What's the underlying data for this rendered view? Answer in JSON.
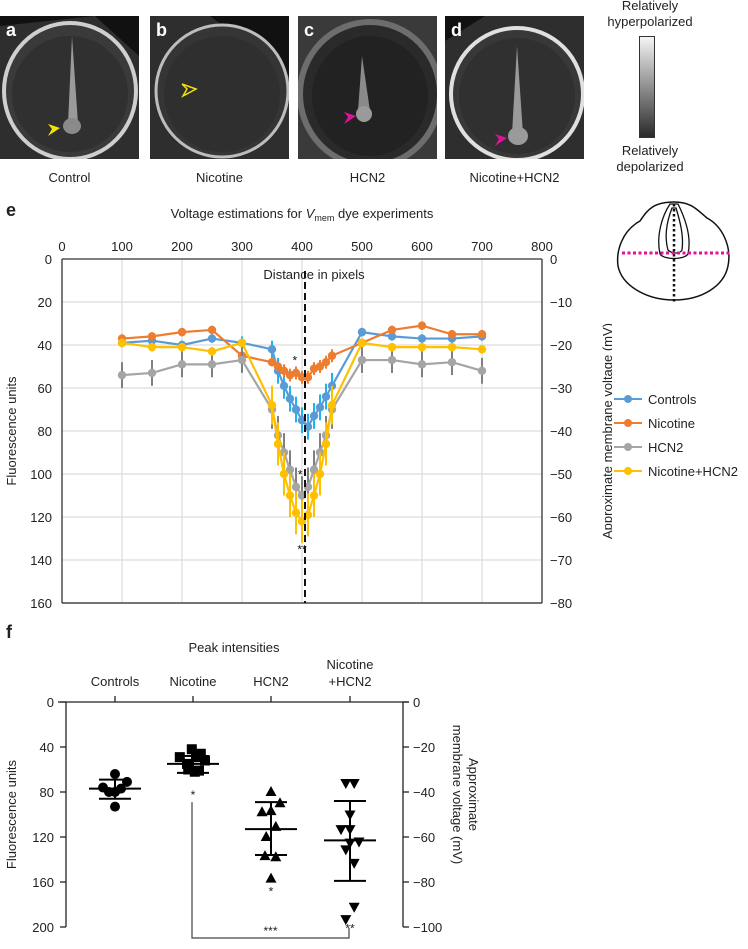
{
  "panels": [
    {
      "letter": "a",
      "caption": "Control",
      "arrow_color": "#f2e20a",
      "arrow_style": "filled"
    },
    {
      "letter": "b",
      "caption": "Nicotine",
      "arrow_color": "#f2e20a",
      "arrow_style": "open"
    },
    {
      "letter": "c",
      "caption": "HCN2",
      "arrow_color": "#e0119a",
      "arrow_style": "filled"
    },
    {
      "letter": "d",
      "caption": "Nicotine+HCN2",
      "arrow_color": "#e0119a",
      "arrow_style": "filled"
    }
  ],
  "scale": {
    "top_label_1": "Relatively",
    "top_label_2": "hyperpolarized",
    "bottom_label_1": "Relatively",
    "bottom_label_2": "depolarized"
  },
  "letters": {
    "e": "e",
    "f": "f"
  },
  "chart_data": [
    {
      "type": "line",
      "title": "Voltage estimations for V_mem dye experiments",
      "title_parts": {
        "pre": "Voltage estimations for ",
        "italic": "V",
        "sub": "mem",
        "post": " dye experiments"
      },
      "xlabel": "Distance in pixels",
      "ylabel": "Fluorescence units",
      "y2label": "Approximate membrane voltage (mV)",
      "xlim": [
        0,
        800
      ],
      "ylim": [
        0,
        160
      ],
      "y_inverted": true,
      "y2lim": [
        0,
        -80
      ],
      "xticks": [
        "0",
        "100",
        "200",
        "300",
        "400",
        "500",
        "600",
        "700",
        "800"
      ],
      "yticks": [
        "0",
        "20",
        "40",
        "60",
        "80",
        "100",
        "120",
        "140",
        "160"
      ],
      "y2ticks": [
        "0",
        "−10",
        "−20",
        "−30",
        "−40",
        "−50",
        "−60",
        "−70",
        "−80"
      ],
      "grid": true,
      "legend_position": "right",
      "reference_line_x": 405,
      "annotations": [
        {
          "text": "*",
          "x": 388,
          "y": 49
        },
        {
          "text": "*",
          "x": 397,
          "y": 102
        },
        {
          "text": "**",
          "x": 400,
          "y": 137
        }
      ],
      "series": [
        {
          "name": "Controls",
          "color": "#5b9bd5",
          "err_color": "#1eb4f0",
          "x": [
            100,
            150,
            200,
            250,
            300,
            350,
            360,
            370,
            380,
            390,
            400,
            410,
            420,
            430,
            440,
            450,
            500,
            550,
            600,
            650,
            700
          ],
          "y": [
            39,
            38,
            40,
            37,
            39,
            42,
            52,
            59,
            65,
            70,
            75,
            78,
            73,
            69,
            64,
            59,
            34,
            36,
            37,
            37,
            36
          ],
          "err": [
            2,
            2,
            2,
            2,
            3,
            4,
            6,
            6,
            6,
            6,
            6,
            6,
            6,
            6,
            6,
            6,
            2,
            2,
            2,
            2,
            2
          ]
        },
        {
          "name": "Nicotine",
          "color": "#ed7d31",
          "err_color": "#ed7d31",
          "x": [
            100,
            150,
            200,
            250,
            300,
            350,
            360,
            370,
            380,
            390,
            400,
            410,
            420,
            430,
            440,
            450,
            500,
            550,
            600,
            650,
            700
          ],
          "y": [
            37,
            36,
            34,
            33,
            45,
            48,
            50,
            52,
            54,
            53,
            55,
            55,
            51,
            50,
            48,
            45,
            39,
            33,
            31,
            35,
            35
          ],
          "err": [
            2,
            2,
            2,
            2,
            2,
            2,
            2,
            3,
            3,
            3,
            3,
            3,
            3,
            3,
            3,
            3,
            2,
            2,
            2,
            2,
            2
          ]
        },
        {
          "name": "HCN2",
          "color": "#a5a5a5",
          "err_color": "#808080",
          "x": [
            100,
            150,
            200,
            250,
            300,
            350,
            360,
            370,
            380,
            390,
            400,
            410,
            420,
            430,
            440,
            450,
            500,
            550,
            600,
            650,
            700
          ],
          "y": [
            54,
            53,
            49,
            49,
            47,
            70,
            82,
            90,
            98,
            106,
            110,
            106,
            98,
            90,
            82,
            70,
            47,
            47,
            49,
            48,
            52
          ],
          "err": [
            6,
            6,
            6,
            6,
            6,
            9,
            9,
            9,
            9,
            9,
            9,
            9,
            9,
            9,
            9,
            9,
            6,
            6,
            6,
            6,
            6
          ]
        },
        {
          "name": "Nicotine+HCN2",
          "color": "#ffc000",
          "err_color": "#ffc000",
          "x": [
            100,
            150,
            200,
            250,
            300,
            350,
            360,
            370,
            380,
            390,
            400,
            410,
            420,
            430,
            440,
            450,
            500,
            550,
            600,
            650,
            700
          ],
          "y": [
            39,
            41,
            41,
            43,
            39,
            68,
            86,
            100,
            110,
            118,
            122,
            119,
            110,
            100,
            86,
            68,
            39,
            41,
            41,
            41,
            42
          ],
          "err": [
            2,
            2,
            2,
            2,
            2,
            9,
            10,
            10,
            10,
            10,
            10,
            10,
            10,
            10,
            10,
            9,
            2,
            2,
            2,
            2,
            2
          ]
        }
      ]
    },
    {
      "type": "scatter",
      "title": "Peak intensities",
      "ylabel": "Fluorescence units",
      "y2label": "Approximate membrane voltage (mV)",
      "y2label_lines": [
        "Approximate",
        "membrane voltage (mV)"
      ],
      "ylim": [
        0,
        200
      ],
      "y_inverted": true,
      "y2lim": [
        0,
        -100
      ],
      "yticks": [
        "0",
        "40",
        "80",
        "120",
        "160",
        "200"
      ],
      "y2ticks": [
        "0",
        "−20",
        "−40",
        "−60",
        "−80",
        "−100"
      ],
      "categories": [
        "Controls",
        "Nicotine",
        "HCN2",
        "Nicotine\n+HCN2"
      ],
      "category_lines": [
        [
          "Controls"
        ],
        [
          "Nicotine"
        ],
        [
          "HCN2"
        ],
        [
          "Nicotine",
          "+HCN2"
        ]
      ],
      "groups": [
        {
          "name": "Controls",
          "marker": "circle",
          "points": [
            [
              -0.2,
              76
            ],
            [
              -0.1,
              80
            ],
            [
              0,
              64
            ],
            [
              0,
              80
            ],
            [
              0,
              93
            ],
            [
              0.1,
              77
            ],
            [
              0.2,
              71
            ]
          ],
          "mean": 77,
          "sd_low": 69,
          "sd_high": 86,
          "sig": ""
        },
        {
          "name": "Nicotine",
          "marker": "square",
          "points": [
            [
              -0.22,
              49
            ],
            [
              -0.1,
              55
            ],
            [
              -0.02,
              42
            ],
            [
              0.05,
              49
            ],
            [
              0.13,
              46
            ],
            [
              0.03,
              62
            ],
            [
              -0.08,
              60
            ],
            [
              0.1,
              61
            ],
            [
              0.2,
              52
            ]
          ],
          "mean": 55,
          "sd_low": 48,
          "sd_high": 63,
          "sig": "*"
        },
        {
          "name": "HCN2",
          "marker": "triangle-up",
          "points": [
            [
              0,
              80
            ],
            [
              0.15,
              90
            ],
            [
              -0.15,
              98
            ],
            [
              0,
              97
            ],
            [
              0.08,
              111
            ],
            [
              -0.08,
              120
            ],
            [
              -0.1,
              137
            ],
            [
              0.08,
              138
            ],
            [
              0,
              157
            ]
          ],
          "mean": 113,
          "sd_low": 89,
          "sd_high": 136,
          "sig": "*"
        },
        {
          "name": "Nicotine+HCN2",
          "marker": "triangle-down",
          "points": [
            [
              -0.07,
              72
            ],
            [
              0.07,
              72
            ],
            [
              0,
              100
            ],
            [
              -0.15,
              113
            ],
            [
              0,
              113
            ],
            [
              0,
              125
            ],
            [
              0.15,
              124
            ],
            [
              -0.07,
              131
            ],
            [
              0.07,
              143
            ],
            [
              0.07,
              182
            ],
            [
              -0.07,
              193
            ]
          ],
          "mean": 123,
          "sd_low": 88,
          "sd_high": 159,
          "sig": "**"
        }
      ],
      "comparison": {
        "from": "Nicotine",
        "to": "Nicotine+HCN2",
        "label": "***"
      }
    }
  ]
}
